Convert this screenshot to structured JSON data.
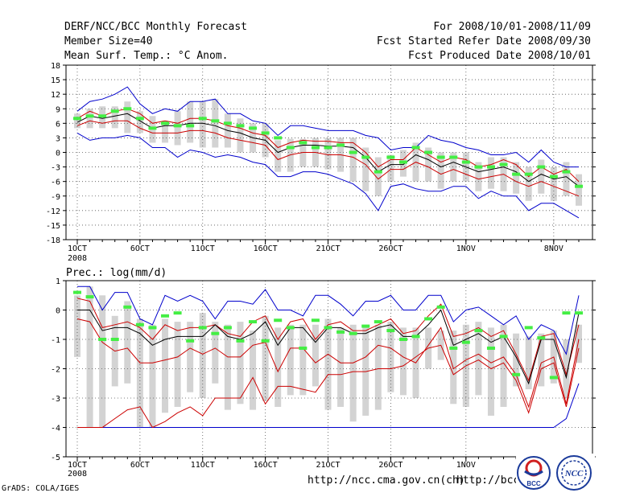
{
  "header": {
    "title": "DERF/NCC/BCC Monthly Forecast",
    "member_size": "Member Size=40",
    "variable": "Mean Surf. Temp.: °C Anom.",
    "period": "For 2008/10/01-2008/11/09",
    "started": "Fcst Started Refer Date 2008/09/30",
    "produced": "Fcst Produced Date 2008/10/01"
  },
  "footer": {
    "grads": "GrADS: COLA/IGES",
    "url1": "http://ncc.cma.gov.cn(ch)",
    "url2": "http://bcc.",
    "logo_left": "BCC",
    "logo_right": "NCC"
  },
  "colors": {
    "box": "#d3d3d3",
    "max": "#0000cc",
    "band": "#cc0000",
    "mean": "#000000",
    "green": "#44ee44"
  },
  "chart_data": [
    {
      "type": "line",
      "title": "Mean Surf. Temp.: °C Anom.",
      "ylim": [
        -18,
        18
      ],
      "yticks": [
        -18,
        -15,
        -12,
        -9,
        -6,
        -3,
        0,
        3,
        6,
        9,
        12,
        15,
        18
      ],
      "ytick_labels": [
        "-18",
        "-15",
        "-12",
        "-9",
        "-6",
        "-3",
        "0",
        "3",
        "6",
        "9",
        "12",
        "15",
        "18"
      ],
      "xlim": [
        0,
        40
      ],
      "xtick_days": [
        0,
        5,
        10,
        15,
        20,
        25,
        31,
        38
      ],
      "xtick_labels": [
        "1OCT",
        "6OCT",
        "11OCT",
        "16OCT",
        "21OCT",
        "26OCT",
        "1NOV",
        "8NOV"
      ],
      "x_sublabel": "2008",
      "series": [
        {
          "name": "max",
          "values": [
            8.5,
            10.5,
            11,
            12,
            13.5,
            10,
            8,
            9,
            8.5,
            10.5,
            10.5,
            11,
            8,
            8,
            6.5,
            6,
            3.5,
            5.5,
            5.5,
            5,
            4.5,
            4.5,
            4.5,
            3.5,
            3,
            0.5,
            1,
            1,
            3.5,
            2.5,
            2,
            1,
            0.5,
            -0.5,
            -0.5,
            0,
            -2,
            0.5,
            -2,
            -3,
            -3
          ]
        },
        {
          "name": "upper",
          "values": [
            7,
            8.5,
            7.5,
            8.5,
            9,
            8,
            6,
            6.5,
            6,
            7,
            7,
            6.5,
            5.5,
            5,
            4,
            3.5,
            1,
            2,
            2.5,
            2.3,
            2.3,
            2,
            2,
            0,
            -3,
            -1.5,
            -1.5,
            1,
            -0.5,
            -2,
            -1,
            -1.5,
            -3,
            -2.5,
            -1.5,
            -2.5,
            -5,
            -3,
            -4.5,
            -3.5,
            -6
          ]
        },
        {
          "name": "mean",
          "values": [
            6.2,
            7.5,
            7,
            7.5,
            8,
            6.5,
            5,
            5.5,
            5.5,
            6,
            6,
            5.5,
            4.5,
            4,
            3,
            2.5,
            0,
            1,
            1.5,
            1.5,
            1.3,
            1.3,
            1,
            -1,
            -4,
            -2.5,
            -2.5,
            -0.5,
            -1.5,
            -3,
            -2,
            -3,
            -4,
            -3.5,
            -3,
            -4,
            -6,
            -4.5,
            -5.5,
            -5,
            -7
          ]
        },
        {
          "name": "lower",
          "values": [
            5.5,
            6.5,
            6,
            6.5,
            6.5,
            5,
            4,
            4,
            4,
            4.5,
            4.5,
            4,
            3,
            2.5,
            2,
            1.5,
            -1.5,
            -0.5,
            0,
            0,
            -0.5,
            -0.5,
            -1,
            -2.5,
            -5.5,
            -3.5,
            -3.5,
            -2,
            -3,
            -4.5,
            -3.5,
            -4.5,
            -5.5,
            -5,
            -4.5,
            -6,
            -7,
            -6,
            -7,
            -8,
            -9
          ]
        },
        {
          "name": "min",
          "values": [
            4,
            2.5,
            3,
            3,
            3.5,
            3,
            1,
            1,
            -1,
            0.5,
            0,
            -1,
            -0.5,
            -1,
            -2,
            -2.5,
            -5,
            -5,
            -4,
            -4,
            -4.5,
            -5.5,
            -6.5,
            -8.5,
            -12,
            -7,
            -6.5,
            -7.5,
            -8,
            -8,
            -7,
            -7,
            -9.5,
            -8,
            -9,
            -9,
            -12,
            -10.5,
            -10.5,
            -12,
            -13.5
          ]
        },
        {
          "name": "box_top",
          "values": [
            8,
            9,
            9.5,
            9.5,
            10.5,
            8.5,
            7.5,
            6.5,
            8.5,
            10.5,
            10.5,
            11,
            8,
            7,
            6,
            6,
            2.5,
            2.8,
            2.8,
            3,
            3,
            3,
            3,
            1,
            -1,
            -0.5,
            0.5,
            2,
            1,
            0,
            0,
            0,
            -2,
            -1,
            -1,
            -2,
            -3,
            -1.5,
            -3,
            -2,
            -4.5
          ]
        },
        {
          "name": "box_bottom",
          "values": [
            5,
            5,
            5,
            5,
            4,
            4,
            2,
            2,
            1.5,
            2,
            1,
            1,
            1,
            0,
            0,
            -1,
            -4,
            -4,
            -3,
            -3,
            -3.5,
            -4,
            -6,
            -8,
            -9,
            -6,
            -5,
            -6,
            -6,
            -7.5,
            -6,
            -6,
            -8,
            -7.5,
            -8,
            -8.5,
            -10,
            -8.5,
            -10,
            -9,
            -11
          ]
        },
        {
          "name": "green_marks",
          "values": [
            7,
            7.5,
            7.5,
            8.5,
            9,
            7,
            5,
            6,
            5.5,
            5.5,
            7,
            6.5,
            6,
            5.5,
            5,
            4,
            3,
            1,
            2,
            1,
            1,
            1.5,
            0,
            -1,
            -4,
            -1,
            -2,
            1,
            0,
            -1,
            -1,
            -2,
            -3,
            -3,
            -2.5,
            -4.5,
            -4.5,
            -3,
            -5,
            -4,
            -7
          ]
        }
      ]
    },
    {
      "type": "line",
      "title": "Prec.: log(mm/d)",
      "ylim": [
        -5,
        1
      ],
      "yticks": [
        -5,
        -4,
        -3,
        -2,
        -1,
        0,
        1
      ],
      "ytick_labels": [
        "-5",
        "-4",
        "-3",
        "-2",
        "-1",
        "0",
        "1"
      ],
      "xlim": [
        0,
        40
      ],
      "xtick_days": [
        0,
        5,
        10,
        15,
        20,
        25,
        31
      ],
      "xtick_labels": [
        "1OCT",
        "6OCT",
        "11OCT",
        "16OCT",
        "21OCT",
        "26OCT",
        "1NOV"
      ],
      "x_sublabel": "2008",
      "series": [
        {
          "name": "max",
          "values": [
            0.8,
            0.8,
            0,
            0.6,
            0.6,
            -0.3,
            -0.5,
            0.5,
            0.3,
            0.5,
            0.3,
            -0.3,
            0.3,
            0.3,
            0.2,
            0.7,
            0,
            0,
            -0.2,
            0.5,
            0.5,
            0.2,
            -0.2,
            0.3,
            0.3,
            0.5,
            0,
            0,
            0.5,
            0.5,
            -0.4,
            0,
            0.1,
            -0.2,
            -0.5,
            -0.2,
            -1,
            -0.5,
            -0.7,
            -1.5,
            0.5
          ]
        },
        {
          "name": "upper",
          "values": [
            0.4,
            0.3,
            -0.6,
            -0.5,
            -0.4,
            -0.6,
            -1.0,
            -0.5,
            -0.7,
            -0.6,
            -0.6,
            -0.5,
            -0.8,
            -0.9,
            -0.4,
            -0.2,
            -1.0,
            -0.4,
            -0.3,
            -1.0,
            -0.5,
            -0.4,
            -0.7,
            -0.7,
            -0.5,
            -0.3,
            -0.8,
            -0.7,
            -0.2,
            0.2,
            -0.9,
            -0.8,
            -0.6,
            -0.9,
            -0.7,
            -1.5,
            -2.4,
            -0.9,
            -0.8,
            -2.2,
            -0.5
          ]
        },
        {
          "name": "mean",
          "values": [
            0,
            0,
            -0.7,
            -0.6,
            -0.6,
            -0.8,
            -1.2,
            -1.0,
            -0.9,
            -0.9,
            -0.9,
            -0.5,
            -0.9,
            -1.0,
            -0.8,
            -0.4,
            -1.2,
            -0.6,
            -0.6,
            -1.1,
            -0.6,
            -0.6,
            -0.8,
            -0.8,
            -0.6,
            -0.5,
            -0.9,
            -0.9,
            -0.5,
            0.0,
            -1.2,
            -1.0,
            -0.8,
            -1.1,
            -0.9,
            -1.6,
            -2.5,
            -1.0,
            -1.0,
            -2.3,
            -0.1
          ]
        },
        {
          "name": "lower",
          "values": [
            -0.3,
            -0.4,
            -1.1,
            -1.4,
            -1.3,
            -1.8,
            -1.8,
            -1.7,
            -1.6,
            -1.3,
            -1.5,
            -1.3,
            -1.6,
            -1.6,
            -1.2,
            -1.1,
            -2.1,
            -1.3,
            -1.3,
            -1.8,
            -1.5,
            -1.8,
            -1.8,
            -1.6,
            -1.2,
            -1.3,
            -1.6,
            -1.8,
            -1.2,
            -0.6,
            -2.0,
            -1.7,
            -1.5,
            -1.8,
            -1.6,
            -2.2,
            -3.3,
            -1.8,
            -1.6,
            -3.2,
            -1.0
          ]
        },
        {
          "name": "min",
          "values": [
            -4,
            -4,
            -4,
            -4,
            -4,
            -4,
            -4,
            -4,
            -4,
            -4,
            -4,
            -4,
            -4,
            -4,
            -4,
            -4,
            -4,
            -4,
            -4,
            -4,
            -4,
            -4,
            -4,
            -4,
            -4,
            -4,
            -4,
            -4,
            -4,
            -4,
            -4,
            -4,
            -4,
            -4,
            -4,
            -4,
            -4,
            -4,
            -4,
            -3.7,
            -2.5
          ]
        },
        {
          "name": "low_band",
          "values": [
            -4,
            -4,
            -4,
            -3.7,
            -3.4,
            -3.3,
            -4,
            -3.8,
            -3.5,
            -3.3,
            -3.6,
            -3.0,
            -3.0,
            -3.0,
            -2.3,
            -3.2,
            -2.6,
            -2.6,
            -2.7,
            -2.8,
            -2.2,
            -2.2,
            -2.1,
            -2.1,
            -2.0,
            -2.0,
            -1.9,
            -1.6,
            -1.3,
            -1.2,
            -2.2,
            -1.9,
            -1.7,
            -2.0,
            -1.8,
            -2.4,
            -3.5,
            -2.0,
            -1.8,
            -3.3,
            -1.3
          ]
        },
        {
          "name": "box_top",
          "values": [
            0.5,
            0.8,
            0.5,
            -0.2,
            0.3,
            -0.3,
            -0.5,
            -0.3,
            -0.4,
            -0.4,
            -0.1,
            -0.4,
            -0.5,
            -0.4,
            -0.7,
            -0.2,
            -0.6,
            -0.5,
            -0.5,
            -0.5,
            -0.3,
            -0.6,
            -0.5,
            -0.6,
            -0.5,
            -0.4,
            -0.6,
            -0.6,
            -0.6,
            -0.7,
            -0.7,
            -0.5,
            -0.4,
            -0.6,
            -0.5,
            -0.8,
            -0.9,
            -0.8,
            -0.7,
            -1.0,
            -0.5
          ]
        },
        {
          "name": "box_bottom",
          "values": [
            -1.6,
            -4,
            -4,
            -2.6,
            -2.5,
            -4,
            -4,
            -3.5,
            -3.3,
            -2.8,
            -3,
            -2.5,
            -3.4,
            -3.2,
            -3.4,
            -3.1,
            -3.3,
            -2.9,
            -2.9,
            -2.6,
            -3.4,
            -3.3,
            -3.8,
            -3.6,
            -3.4,
            -2.8,
            -2.9,
            -3.0,
            -2.0,
            -1.7,
            -3.2,
            -3.3,
            -2.9,
            -3.6,
            -3.3,
            -2.6,
            -2.7,
            -2.6,
            -2.5,
            -3.0,
            -1.8
          ]
        },
        {
          "name": "green_marks",
          "values": [
            0.6,
            0.45,
            -1.0,
            -1.0,
            0.1,
            -0.5,
            -0.6,
            -0.2,
            -0.1,
            -1.05,
            -0.6,
            -0.8,
            -0.6,
            -1.05,
            -0.4,
            -1.05,
            -0.35,
            -0.6,
            -1.3,
            -0.35,
            -0.6,
            -0.75,
            -0.8,
            -0.55,
            -0.4,
            -0.7,
            -1.0,
            -0.9,
            -0.3,
            0.1,
            -1.3,
            -1.1,
            -0.7,
            -1.3,
            -0.9,
            -2.2,
            -0.6,
            -0.95,
            -2.3,
            -0.1,
            -0.1
          ]
        }
      ]
    }
  ]
}
